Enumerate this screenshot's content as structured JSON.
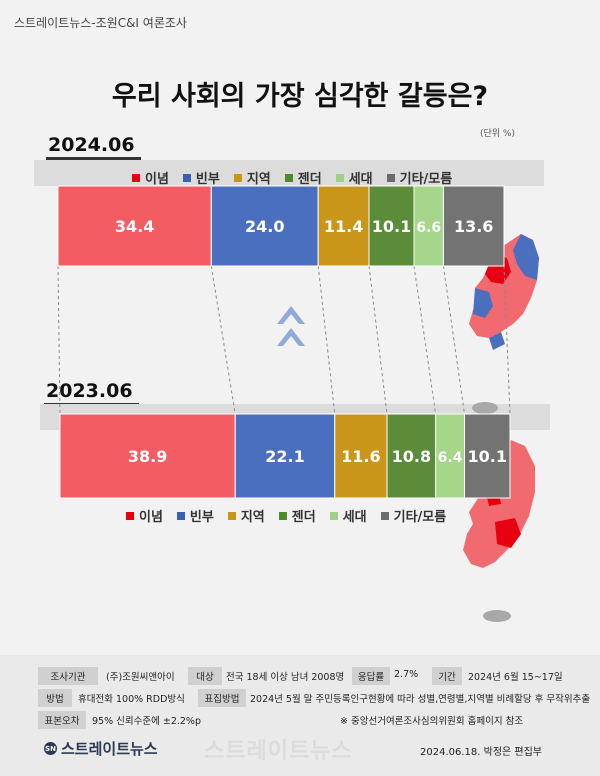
{
  "source_line": "스트레이트뉴스-조원C&I 여론조사",
  "unit": "(단위 %)",
  "chart_data": {
    "type": "bar",
    "stacked": true,
    "orientation": "horizontal",
    "title": "우리 사회의 가장 심각한 갈등은?",
    "categories": [
      "2024.06",
      "2023.06"
    ],
    "series": [
      {
        "name": "이념",
        "color": "#f25c62",
        "legend_color": "#e60012",
        "values": [
          34.4,
          38.9
        ]
      },
      {
        "name": "빈부",
        "color": "#4b6fbf",
        "legend_color": "#3a5fb5",
        "values": [
          24.0,
          22.1
        ]
      },
      {
        "name": "지역",
        "color": "#c9961a",
        "legend_color": "#c9961a",
        "values": [
          11.4,
          11.6
        ]
      },
      {
        "name": "젠더",
        "color": "#5a8c3a",
        "legend_color": "#4f8a2e",
        "values": [
          10.1,
          10.8
        ]
      },
      {
        "name": "세대",
        "color": "#a6d68a",
        "legend_color": "#9fd184",
        "values": [
          6.6,
          6.4
        ]
      },
      {
        "name": "기타/모름",
        "color": "#737373",
        "legend_color": "#6b6b6b",
        "values": [
          13.6,
          10.1
        ]
      }
    ],
    "value_labels": [
      [
        "34.4",
        "24.0",
        "11.4",
        "10.1",
        "6.6",
        "13.6"
      ],
      [
        "38.9",
        "22.1",
        "11.6",
        "10.8",
        "6.4",
        "10.1"
      ]
    ],
    "legend": [
      "이념",
      "빈부",
      "지역",
      "젠더",
      "세대",
      "기타/모름"
    ]
  },
  "footer": {
    "survey_org_label": "조사기관",
    "survey_org": "(주)조원씨앤아이",
    "target_label": "대상",
    "target": "전국 18세 이상 남녀 2008명",
    "response_label": "응답률",
    "response": "2.7%",
    "period_label": "기간",
    "period": "2024년  6월 15~17일",
    "method_label": "방법",
    "method": "휴대전화 100% RDD방식",
    "sampling_label": "표집방법",
    "sampling": "2024년 5월 말 주민등록인구현황에 따라 성별,연령별,지역별 비례할당 후 무작위추출",
    "error_label": "표본오차",
    "error": "95% 신뢰수준에 ±2.2%p",
    "note": "※ 중앙선거여론조사심의위원회 홈페이지 참조",
    "brand": "스트레이트뉴스",
    "brand_logo": "SN",
    "watermark": "스트레이트뉴스",
    "dateline": "2024.06.18. 박정은 편집부"
  },
  "icons": {
    "chevron": "double-chevron-up-icon",
    "map": "korea-map-icon"
  }
}
